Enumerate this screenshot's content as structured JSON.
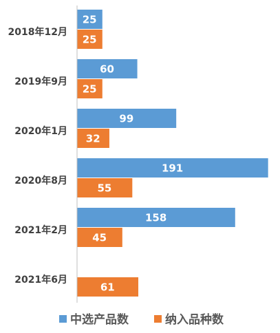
{
  "chart_data": {
    "type": "bar",
    "orientation": "horizontal",
    "categories": [
      "2018年12月",
      "2019年9月",
      "2020年1月",
      "2020年8月",
      "2021年2月",
      "2021年6月"
    ],
    "series": [
      {
        "name": "中选产品数",
        "values": [
          25,
          60,
          99,
          191,
          158,
          null
        ],
        "color": "#5b9bd5"
      },
      {
        "name": "纳入品种数",
        "values": [
          25,
          25,
          32,
          55,
          45,
          61
        ],
        "color": "#ed7d31"
      }
    ],
    "data_labels": true,
    "grid": false,
    "legend_position": "bottom",
    "xlim": [
      0,
      195
    ]
  }
}
